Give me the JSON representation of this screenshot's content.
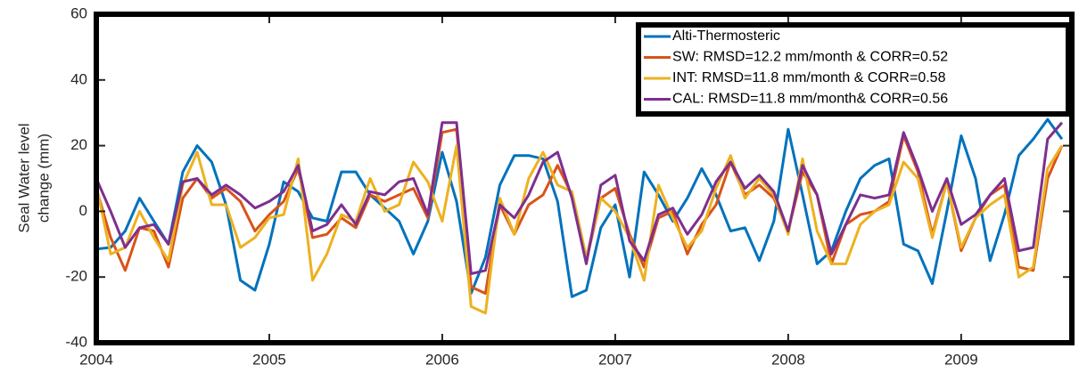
{
  "chart_data": {
    "type": "line",
    "ylabel": [
      "Seal Water level",
      "change (mm)"
    ],
    "x": [
      2004,
      2004.083,
      2004.167,
      2004.25,
      2004.333,
      2004.417,
      2004.5,
      2004.583,
      2004.667,
      2004.75,
      2004.833,
      2004.917,
      2005,
      2005.083,
      2005.167,
      2005.25,
      2005.333,
      2005.417,
      2005.5,
      2005.583,
      2005.667,
      2005.75,
      2005.833,
      2005.917,
      2006,
      2006.083,
      2006.167,
      2006.25,
      2006.333,
      2006.417,
      2006.5,
      2006.583,
      2006.667,
      2006.75,
      2006.833,
      2006.917,
      2007,
      2007.083,
      2007.167,
      2007.25,
      2007.333,
      2007.417,
      2007.5,
      2007.583,
      2007.667,
      2007.75,
      2007.833,
      2007.917,
      2008,
      2008.083,
      2008.167,
      2008.25,
      2008.333,
      2008.417,
      2008.5,
      2008.583,
      2008.667,
      2008.75,
      2008.833,
      2008.917,
      2009,
      2009.083,
      2009.167,
      2009.25,
      2009.333,
      2009.417,
      2009.5,
      2009.583
    ],
    "series": [
      {
        "name": "Alti-Thermosteric",
        "color": "#0072bd",
        "values": [
          -11.5,
          -11,
          -6,
          4,
          -3,
          -10,
          12,
          20,
          15,
          2,
          -21,
          -24,
          -10,
          9,
          6,
          -2,
          -3,
          12,
          12,
          5,
          1,
          -3,
          -13,
          -3,
          18,
          3,
          -25,
          -14,
          8,
          17,
          17,
          16,
          3,
          -26,
          -24,
          -5,
          2,
          -20,
          12,
          5,
          -3,
          4,
          13,
          5,
          -6,
          -5,
          -15,
          -3,
          25,
          5,
          -16,
          -12,
          0,
          10,
          14,
          16,
          -10,
          -12,
          -22,
          0,
          23,
          10,
          -15,
          -1,
          17,
          22,
          28,
          22
        ]
      },
      {
        "name": "SW: RMSD=12.2 mm/month & CORR=0.52",
        "color": "#d95319",
        "values": [
          7,
          -8,
          -18,
          -5,
          -6,
          -17,
          4,
          10,
          4,
          7,
          3,
          -6,
          -1,
          3,
          13,
          -8,
          -7,
          -2,
          -5,
          5,
          3,
          5,
          7,
          -2,
          24,
          25,
          -23,
          -25,
          2,
          -7,
          2,
          5,
          14,
          5,
          -15,
          4,
          7,
          -7,
          -17,
          -2,
          0,
          -13,
          -4,
          2,
          15,
          5,
          8,
          4,
          -6,
          12,
          5,
          -16,
          -4,
          -1,
          0,
          3,
          23,
          12,
          -7,
          9,
          -12,
          -2,
          5,
          8,
          -17,
          -18,
          10,
          20
        ]
      },
      {
        "name": "INT: RMSD=11.8 mm/month & CORR=0.58",
        "color": "#edb120",
        "values": [
          8,
          -13,
          -11,
          0,
          -8,
          -15,
          8,
          18,
          2,
          2,
          -11,
          -8,
          -2,
          -1,
          16,
          -21,
          -13,
          -1,
          -3,
          10,
          0,
          2,
          15,
          9,
          -3,
          20,
          -29,
          -31,
          4,
          -7,
          10,
          18,
          8,
          6,
          -14,
          4,
          0,
          -8,
          -21,
          8,
          -2,
          -11,
          -6,
          7,
          17,
          4,
          10,
          5,
          -7,
          16,
          -6,
          -16,
          -16,
          -4,
          0,
          2,
          15,
          10,
          -8,
          9,
          -11,
          -2,
          2,
          5,
          -20,
          -17,
          13,
          20
        ]
      },
      {
        "name": "CAL: RMSD=11.8 mm/month& CORR=0.56",
        "color": "#7e2f8e",
        "values": [
          10,
          0,
          -11,
          -5,
          -4,
          -10,
          9,
          10,
          5,
          8,
          5,
          1,
          3,
          6,
          14,
          -6,
          -4,
          2,
          -4,
          6,
          5,
          9,
          10,
          -1,
          27,
          27,
          -19,
          -18,
          2,
          -2,
          5,
          15,
          18,
          4,
          -16,
          8,
          11,
          -9,
          -15,
          -1,
          1,
          -7,
          -1,
          9,
          15,
          7,
          11,
          6,
          -6,
          14,
          5,
          -13,
          -4,
          5,
          4,
          5,
          24,
          13,
          0,
          10,
          -4,
          -1,
          5,
          10,
          -12,
          -11,
          22,
          27
        ]
      }
    ],
    "xlim": [
      2004,
      2009.64
    ],
    "xticks": [
      2004,
      2005,
      2006,
      2007,
      2008,
      2009
    ],
    "ylim": [
      -40,
      60
    ],
    "yticks": [
      -40,
      -20,
      0,
      20,
      40,
      60
    ],
    "legend": "upper right"
  }
}
